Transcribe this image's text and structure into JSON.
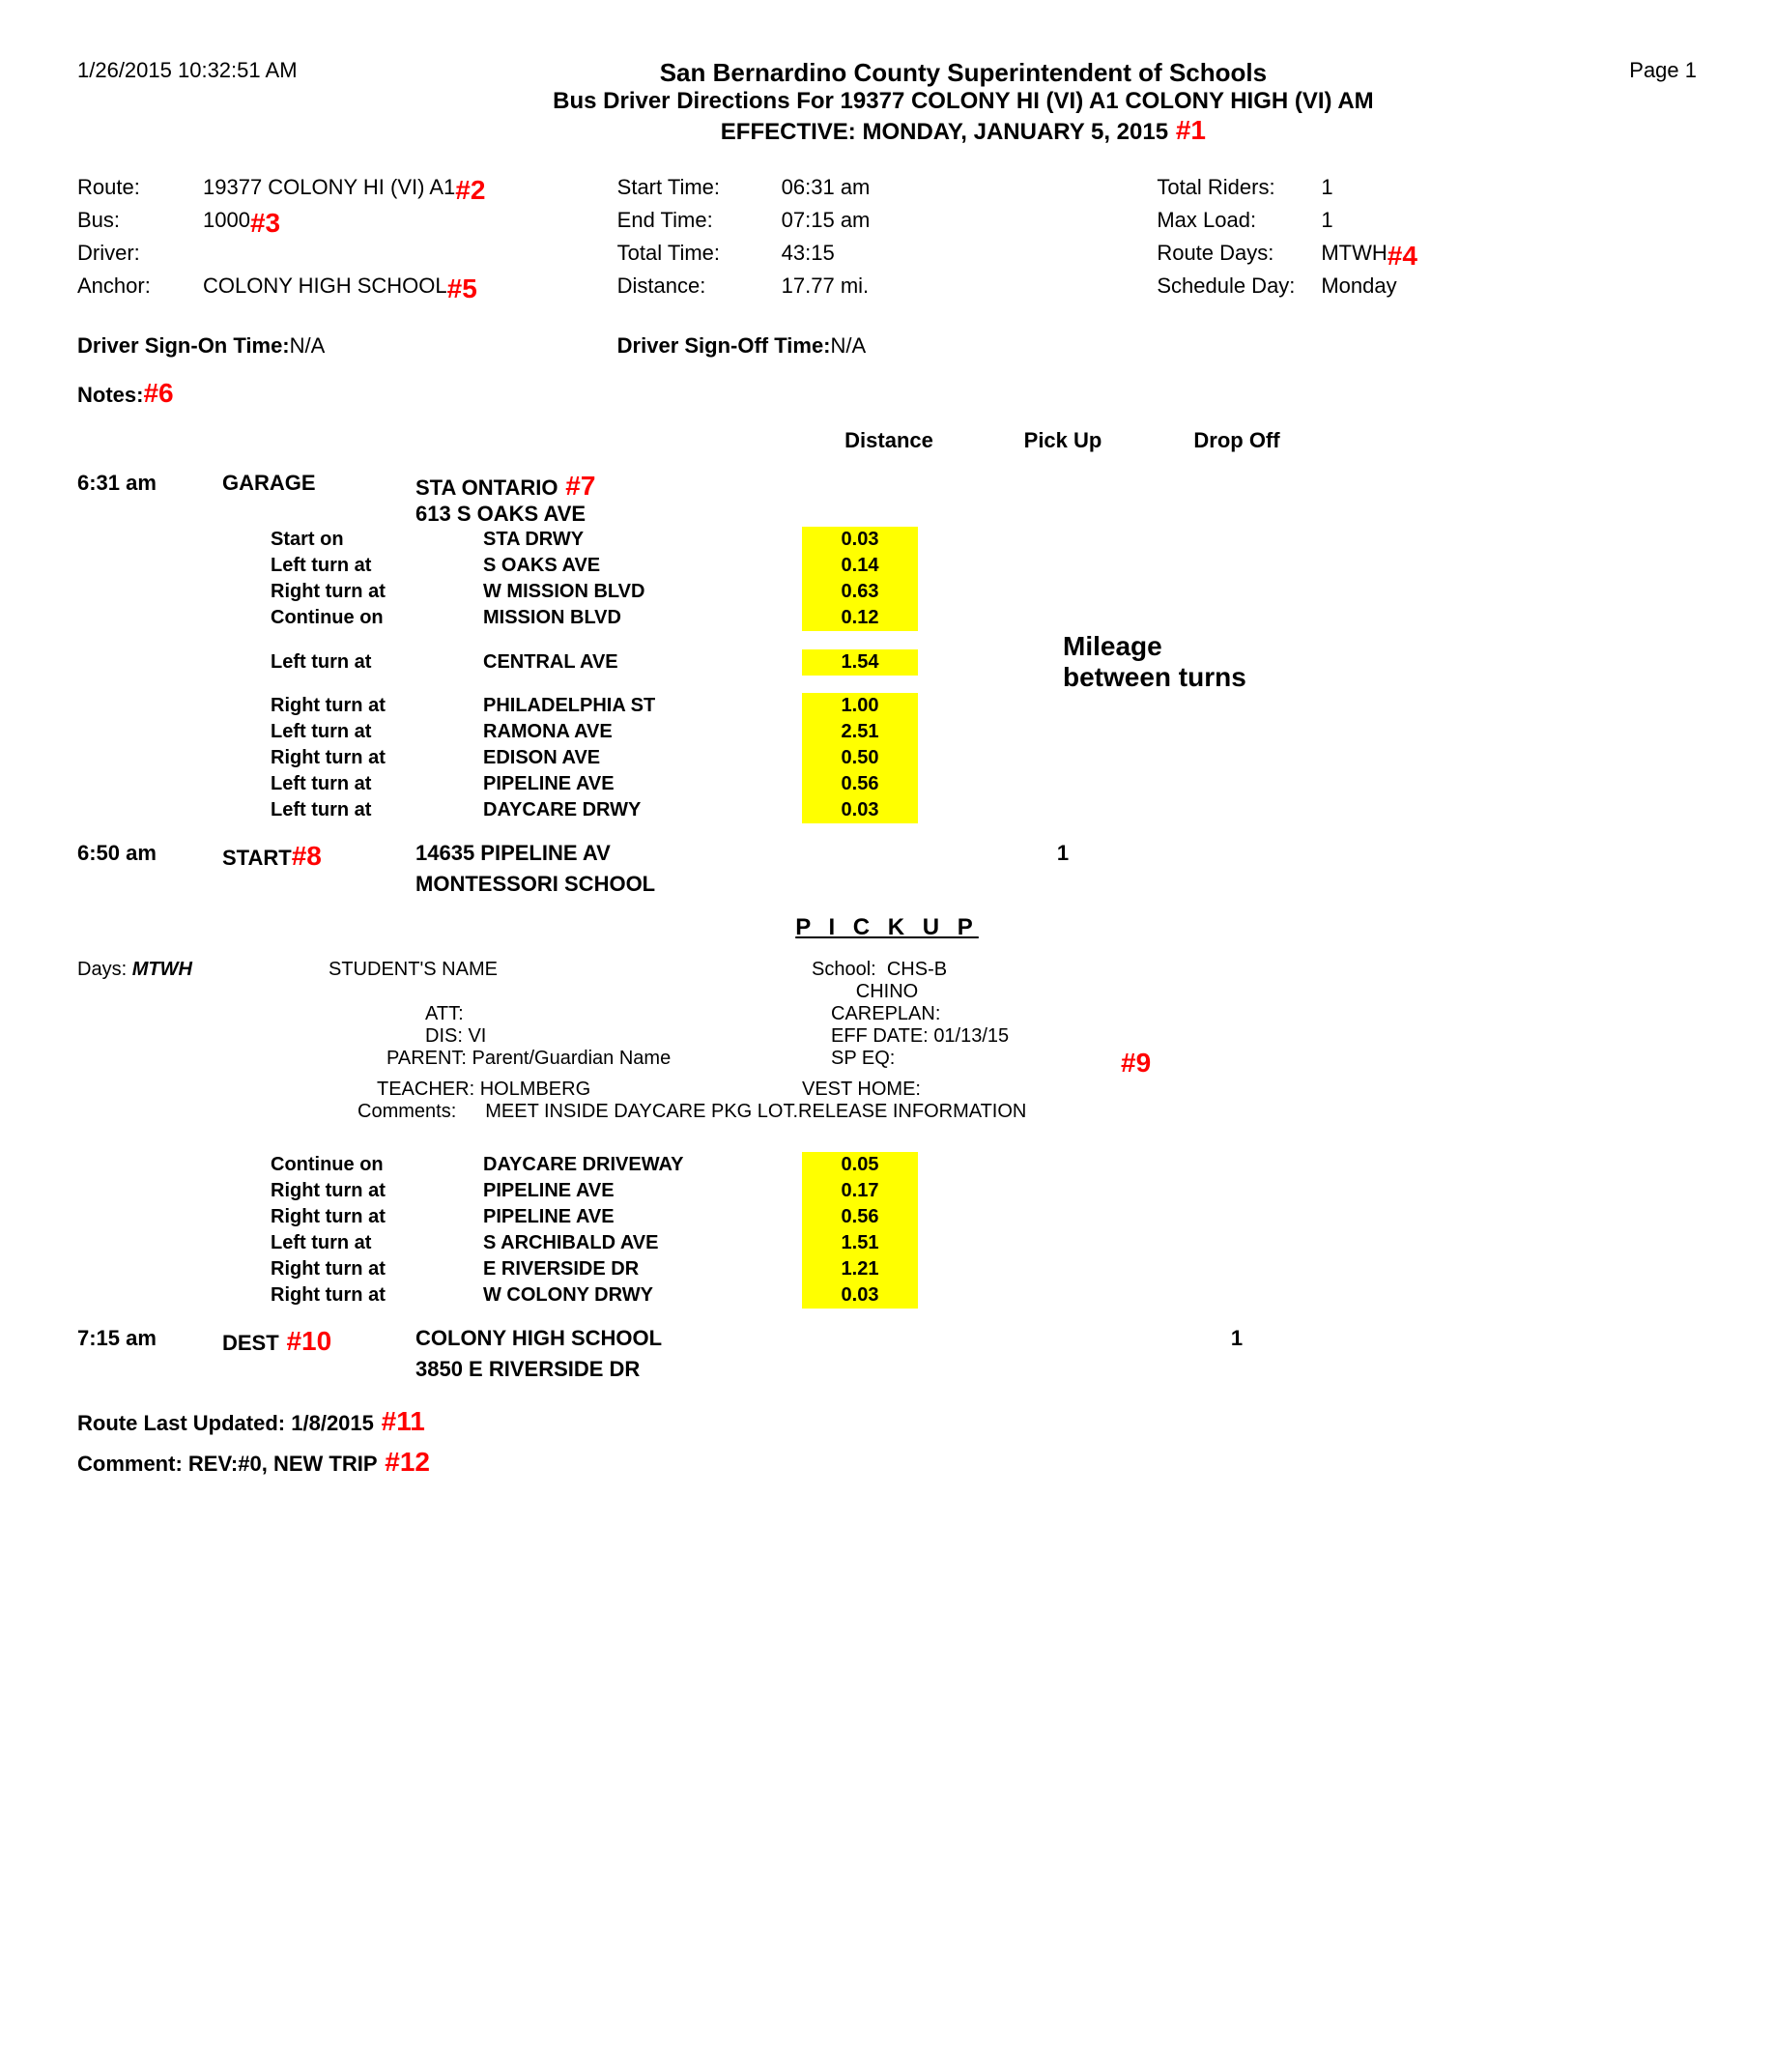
{
  "timestamp": "1/26/2015 10:32:51 AM",
  "page_label": "Page 1",
  "title": "San Bernardino County Superintendent of Schools",
  "subtitle": "Bus Driver Directions For 19377 COLONY HI (VI) A1 COLONY HIGH (VI) AM",
  "effective": "EFFECTIVE: MONDAY, JANUARY 5, 2015",
  "tags": {
    "t1": " #1",
    "t2": " #2",
    "t3": " #3",
    "t4": " #4",
    "t5": " #5",
    "t6": "#6",
    "t7": " #7",
    "t8": "#8",
    "t9": "#9",
    "t10": " #10",
    "t11": " #11",
    "t12": " #12"
  },
  "info": {
    "route_label": "Route:",
    "route": "19377 COLONY HI (VI) A1",
    "bus_label": "Bus:",
    "bus": "1000",
    "driver_label": "Driver:",
    "driver": "",
    "anchor_label": "Anchor:",
    "anchor": "COLONY HIGH SCHOOL",
    "start_label": "Start Time:",
    "start": "06:31 am",
    "end_label": "End Time:",
    "end": "07:15 am",
    "total_label": "Total Time:",
    "total": "43:15",
    "dist_label": "Distance:",
    "dist": "17.77 mi.",
    "riders_label": "Total Riders:",
    "riders": "1",
    "max_label": "Max Load:",
    "max": "1",
    "days_label": "Route Days:",
    "days": "MTWH",
    "sched_label": "Schedule Day:",
    "sched": "Monday"
  },
  "signon_label": "Driver Sign-On Time:",
  "signon": "N/A",
  "signoff_label": "Driver Sign-Off Time:",
  "signoff": "N/A",
  "notes_label": "Notes:",
  "col": {
    "distance": "Distance",
    "pickup": "Pick Up",
    "dropoff": "Drop Off"
  },
  "stops": {
    "garage": {
      "time": "6:31 am",
      "type": "GARAGE",
      "name": "STA ONTARIO",
      "addr": "613 S OAKS AVE"
    },
    "start": {
      "time": "6:50 am",
      "type": "START",
      "name": "14635 PIPELINE AV",
      "addr": "MONTESSORI SCHOOL",
      "pickup": "1"
    },
    "dest": {
      "time": "7:15 am",
      "type": "DEST",
      "name": "COLONY HIGH SCHOOL",
      "addr": "3850 E RIVERSIDE DR",
      "dropoff": "1"
    }
  },
  "turns1": [
    {
      "instr": "Start on",
      "street": "STA DRWY",
      "mile": "0.03"
    },
    {
      "instr": "Left turn at",
      "street": "S OAKS AVE",
      "mile": "0.14"
    },
    {
      "instr": "Right turn at",
      "street": "W MISSION BLVD",
      "mile": "0.63"
    },
    {
      "instr": "Continue on",
      "street": "MISSION BLVD",
      "mile": "0.12"
    },
    {
      "instr": "Left turn at",
      "street": "CENTRAL AVE",
      "mile": "1.54"
    },
    {
      "instr": "Right turn at",
      "street": "PHILADELPHIA ST",
      "mile": "1.00"
    },
    {
      "instr": "Left turn at",
      "street": "RAMONA AVE",
      "mile": "2.51"
    },
    {
      "instr": "Right turn at",
      "street": "EDISON AVE",
      "mile": "0.50"
    },
    {
      "instr": "Left turn at",
      "street": "PIPELINE AVE",
      "mile": "0.56"
    },
    {
      "instr": "Left turn at",
      "street": "DAYCARE DRWY",
      "mile": "0.03"
    }
  ],
  "mileage_note": "Mileage between turns",
  "pickup_header": "P I C K U P",
  "student": {
    "days_label": "Days:",
    "days": "MTWH",
    "name_label": "STUDENT'S NAME",
    "school_label": "School:",
    "school": "CHS-B",
    "city": "CHINO",
    "att_label": "ATT:",
    "att": "",
    "dis_label": "DIS:",
    "dis": "VI",
    "parent_label": "PARENT:",
    "parent": "Parent/Guardian Name",
    "teacher_label": "TEACHER:",
    "teacher": "HOLMBERG",
    "comments_label": "Comments:",
    "comments": "MEET INSIDE DAYCARE PKG LOT.RELEASE INFORMATION",
    "careplan_label": "CAREPLAN:",
    "careplan": "",
    "eff_label": "EFF DATE:",
    "eff": "01/13/15",
    "speq_label": "SP EQ:",
    "speq": "",
    "vest_label": "VEST HOME:",
    "vest": ""
  },
  "turns2": [
    {
      "instr": "Continue on",
      "street": "DAYCARE DRIVEWAY",
      "mile": "0.05"
    },
    {
      "instr": "Right turn at",
      "street": "PIPELINE AVE",
      "mile": "0.17"
    },
    {
      "instr": "Right turn at",
      "street": "PIPELINE AVE",
      "mile": "0.56"
    },
    {
      "instr": "Left turn at",
      "street": "S ARCHIBALD AVE",
      "mile": "1.51"
    },
    {
      "instr": "Right turn at",
      "street": "E RIVERSIDE DR",
      "mile": "1.21"
    },
    {
      "instr": "Right turn at",
      "street": "W COLONY DRWY",
      "mile": "0.03"
    }
  ],
  "footer": {
    "updated_label": "Route Last Updated:",
    "updated": "1/8/2015",
    "comment_label": "Comment:",
    "comment": "REV:#0, NEW TRIP"
  },
  "highlight_color": "#ffff00",
  "tag_color": "#ff0000"
}
